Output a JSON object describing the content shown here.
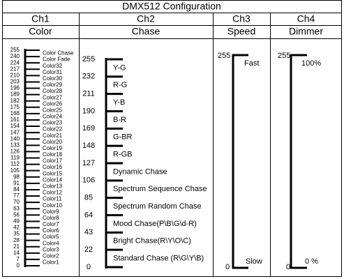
{
  "title": "DMX512 Configuration",
  "columns": [
    {
      "channel": "Ch1",
      "function": "Color",
      "scale": [
        255,
        240,
        224,
        217,
        210,
        203,
        196,
        189,
        182,
        175,
        168,
        161,
        154,
        147,
        140,
        133,
        126,
        119,
        112,
        105,
        98,
        91,
        84,
        77,
        70,
        63,
        56,
        49,
        42,
        35,
        28,
        21,
        14,
        7,
        0
      ],
      "labels": [
        "Color Chase",
        "Color Fade",
        "Color32",
        "Color31",
        "Color30",
        "Color29",
        "Color28",
        "Color27",
        "Color26",
        "Color25",
        "Color24",
        "Color23",
        "Color22",
        "Color21",
        "Color20",
        "Color19",
        "Color18",
        "Color17",
        "Color16",
        "Color15",
        "Color14",
        "Color13",
        "Color12",
        "Color11",
        "Color10",
        "Color9",
        "Color8",
        "Color7",
        "Color6",
        "Color5",
        "Color4",
        "Color3",
        "Color2",
        "Color1"
      ]
    },
    {
      "channel": "Ch2",
      "function": "Chase",
      "scale": [
        255,
        232,
        211,
        190,
        169,
        148,
        127,
        106,
        85,
        64,
        43,
        22,
        0
      ],
      "labels": [
        "Y-G",
        "R-G",
        "Y-B",
        "B-R",
        "G-BR",
        "R-GB",
        "Dynamic Chase",
        "Spectrum Sequence Chase",
        "Spectrum Random Chase",
        "Mood Chase(P\\B\\G\\d-R)",
        "Bright Chase(R\\Y\\O\\C)",
        "Standard Chase (R\\G\\Y\\B)"
      ]
    },
    {
      "channel": "Ch3",
      "function": "Speed",
      "top": 255,
      "top_label": "Fast",
      "bottom": 0,
      "bottom_label": "Slow"
    },
    {
      "channel": "Ch4",
      "function": "Dimmer",
      "top": 255,
      "top_label": "100%",
      "bottom": 0,
      "bottom_label": "0 %"
    }
  ]
}
